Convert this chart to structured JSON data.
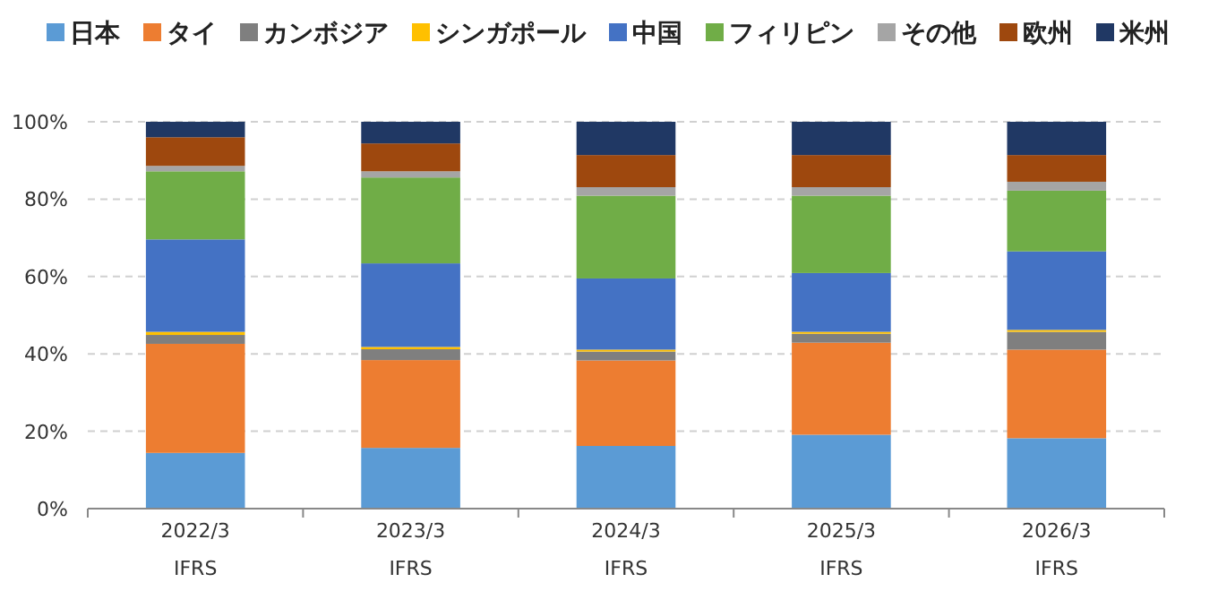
{
  "chart_data": {
    "type": "bar",
    "stacked": true,
    "categories": [
      "2022/3",
      "2023/3",
      "2024/3",
      "2025/3",
      "2026/3"
    ],
    "series": [
      {
        "name": "日本",
        "color": "#5b9bd5",
        "values": [
          14.4,
          15.7,
          16.2,
          19.1,
          18.2
        ]
      },
      {
        "name": "タイ",
        "color": "#ed7d31",
        "values": [
          28.2,
          22.7,
          22.1,
          23.8,
          22.9
        ]
      },
      {
        "name": "カンボジア",
        "color": "#7f7f7f",
        "values": [
          2.3,
          2.8,
          2.3,
          2.3,
          4.6
        ]
      },
      {
        "name": "シンガポール",
        "color": "#ffc000",
        "values": [
          0.8,
          0.6,
          0.5,
          0.5,
          0.5
        ]
      },
      {
        "name": "中国",
        "color": "#4472c4",
        "values": [
          23.9,
          21.6,
          18.4,
          15.2,
          20.3
        ]
      },
      {
        "name": "フィリピン",
        "color": "#70ad47",
        "values": [
          17.6,
          22.2,
          21.4,
          20.0,
          15.7
        ]
      },
      {
        "name": "その他",
        "color": "#a5a5a5",
        "values": [
          1.4,
          1.6,
          2.2,
          2.2,
          2.3
        ]
      },
      {
        "name": "欧州",
        "color": "#9e480e",
        "values": [
          7.4,
          7.2,
          8.3,
          8.3,
          6.9
        ]
      },
      {
        "name": "米州",
        "color": "#203864",
        "values": [
          4.0,
          5.6,
          8.6,
          8.6,
          8.6
        ]
      }
    ],
    "ylim": [
      0,
      100
    ],
    "yticks": [
      {
        "value": 0,
        "label": "0%"
      },
      {
        "value": 20,
        "label": "20%"
      },
      {
        "value": 40,
        "label": "40%"
      },
      {
        "value": 60,
        "label": "60%"
      },
      {
        "value": 80,
        "label": "80%"
      },
      {
        "value": 100,
        "label": "100%"
      }
    ],
    "grid": "y",
    "legend": "top",
    "annotations": [
      "IFRS",
      "IFRS",
      "IFRS",
      "IFRS",
      "IFRS"
    ]
  }
}
